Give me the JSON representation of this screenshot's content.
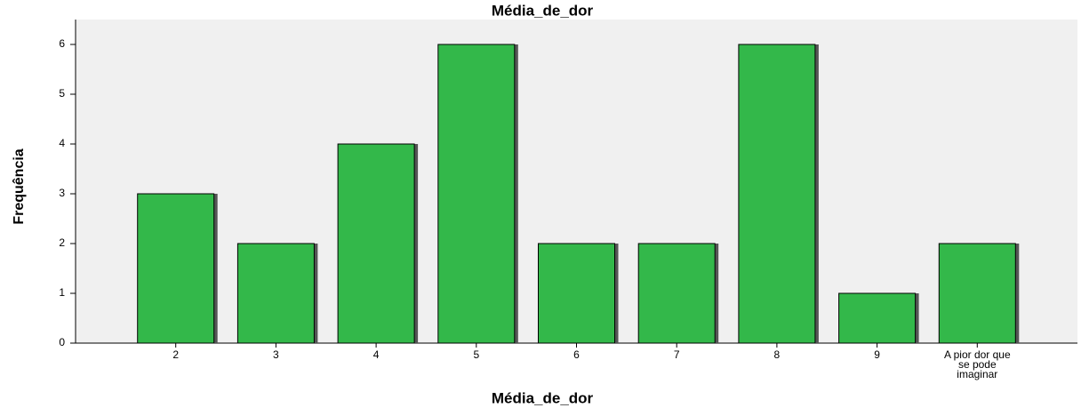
{
  "chart_data": {
    "type": "bar",
    "title": "Média_de_dor",
    "x_label": "Média_de_dor",
    "y_label": "Frequência",
    "categories": [
      "2",
      "3",
      "4",
      "5",
      "6",
      "7",
      "8",
      "9",
      "A pior dor que se pode imaginar"
    ],
    "values": [
      3,
      2,
      4,
      6,
      2,
      2,
      6,
      1,
      2
    ],
    "color": "#33b84a",
    "ylim": [
      0,
      6.5
    ],
    "yticks": [
      0,
      1,
      2,
      3,
      4,
      5,
      6
    ],
    "grid": false
  }
}
